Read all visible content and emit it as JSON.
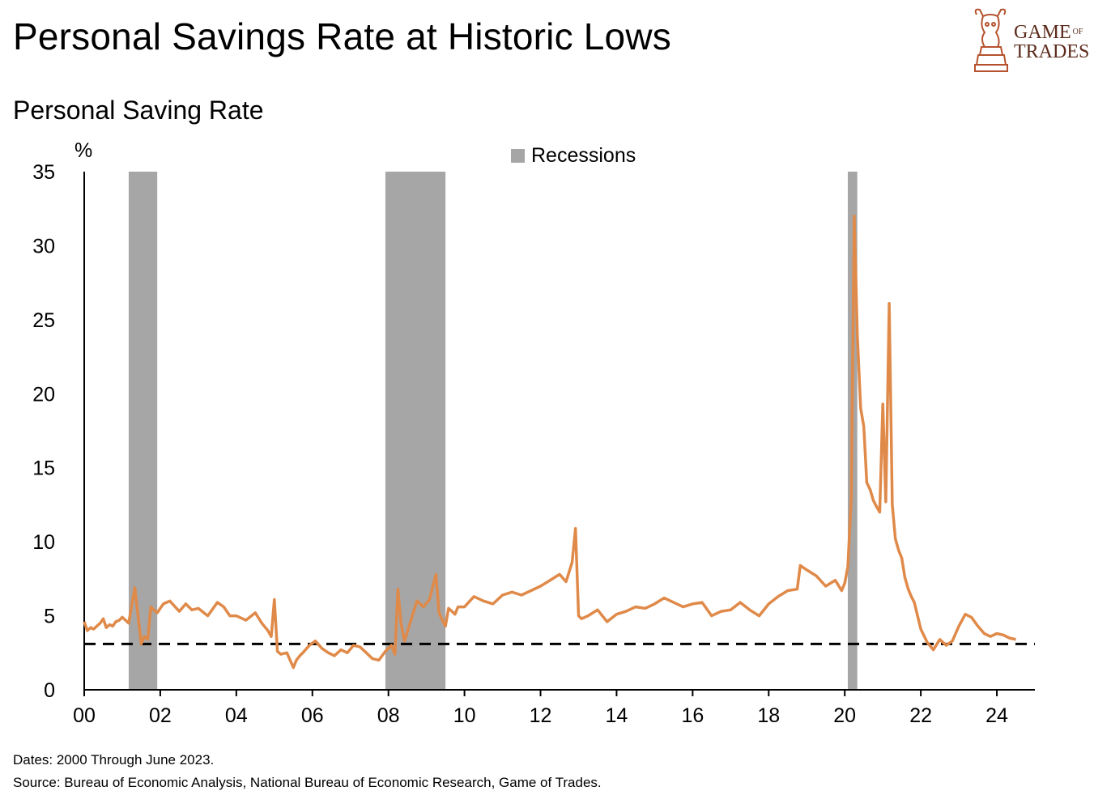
{
  "header": {
    "title": "Personal Savings Rate at Historic Lows",
    "subtitle": "Personal Saving Rate"
  },
  "logo": {
    "line1": "GAME",
    "of": "OF",
    "line2": "TRADES",
    "icon": "bull-knight-chess-icon",
    "color": "#b5532e"
  },
  "footnotes": {
    "dates": "Dates: 2000 Through June 2023.",
    "source": "Source: Bureau of Economic Analysis, National Bureau of Economic Research, Game of Trades."
  },
  "chart_data": {
    "type": "line",
    "title": "Personal Saving Rate",
    "ylabel": "%",
    "xlabel": "",
    "ylim": [
      0,
      35
    ],
    "xlim": [
      2000,
      2025
    ],
    "yticks": [
      "0",
      "5",
      "10",
      "15",
      "20",
      "25",
      "30",
      "35"
    ],
    "xticks": [
      "00",
      "02",
      "04",
      "06",
      "08",
      "10",
      "12",
      "14",
      "16",
      "18",
      "20",
      "22",
      "24"
    ],
    "grid": false,
    "legend": {
      "position": "top-center",
      "entries": [
        "Recessions"
      ]
    },
    "colors": {
      "line": "#e08a4a",
      "recession": "#a6a6a6",
      "reference": "#000000"
    },
    "recessions": [
      {
        "start": 2001.17,
        "end": 2001.92
      },
      {
        "start": 2007.92,
        "end": 2009.5
      },
      {
        "start": 2020.08,
        "end": 2020.33
      }
    ],
    "reference_line": {
      "y": 3.1,
      "style": "dashed"
    },
    "series": [
      {
        "x": [
          2000.0,
          2000.08,
          2000.17,
          2000.25,
          2000.33,
          2000.42,
          2000.5,
          2000.58,
          2000.67,
          2000.75,
          2000.83,
          2000.92,
          2001.0,
          2001.17,
          2001.33,
          2001.5,
          2001.58,
          2001.67,
          2001.75,
          2001.83,
          2001.92,
          2002.0,
          2002.08,
          2002.25,
          2002.5,
          2002.67,
          2002.83,
          2003.0,
          2003.25,
          2003.5,
          2003.67,
          2003.83,
          2004.0,
          2004.25,
          2004.5,
          2004.67,
          2004.83,
          2004.92,
          2005.0,
          2005.08,
          2005.17,
          2005.33,
          2005.5,
          2005.58,
          2005.67,
          2005.75,
          2005.92,
          2006.08,
          2006.25,
          2006.42,
          2006.58,
          2006.75,
          2006.92,
          2007.08,
          2007.25,
          2007.42,
          2007.58,
          2007.75,
          2007.92,
          2008.08,
          2008.17,
          2008.25,
          2008.33,
          2008.42,
          2008.58,
          2008.75,
          2008.92,
          2009.08,
          2009.25,
          2009.33,
          2009.42,
          2009.5,
          2009.58,
          2009.67,
          2009.75,
          2009.83,
          2010.0,
          2010.25,
          2010.5,
          2010.75,
          2011.0,
          2011.25,
          2011.5,
          2011.75,
          2012.0,
          2012.25,
          2012.5,
          2012.67,
          2012.83,
          2012.92,
          2013.0,
          2013.08,
          2013.25,
          2013.5,
          2013.75,
          2014.0,
          2014.25,
          2014.5,
          2014.75,
          2015.0,
          2015.25,
          2015.5,
          2015.75,
          2016.0,
          2016.25,
          2016.5,
          2016.75,
          2017.0,
          2017.25,
          2017.5,
          2017.75,
          2018.0,
          2018.25,
          2018.5,
          2018.75,
          2018.83,
          2019.0,
          2019.25,
          2019.5,
          2019.75,
          2019.92,
          2020.0,
          2020.08,
          2020.17,
          2020.25,
          2020.33,
          2020.42,
          2020.5,
          2020.58,
          2020.67,
          2020.75,
          2020.83,
          2020.92,
          2021.0,
          2021.08,
          2021.17,
          2021.25,
          2021.33,
          2021.42,
          2021.5,
          2021.58,
          2021.67,
          2021.75,
          2021.83,
          2022.0,
          2022.17,
          2022.33,
          2022.5,
          2022.67,
          2022.83,
          2023.0,
          2023.17,
          2023.33,
          2023.5,
          2023.67,
          2023.83,
          2024.0,
          2024.17,
          2024.33,
          2024.5
        ],
        "y": [
          4.6,
          4.0,
          4.2,
          4.1,
          4.3,
          4.5,
          4.8,
          4.2,
          4.4,
          4.3,
          4.6,
          4.7,
          4.9,
          4.5,
          6.9,
          3.1,
          3.6,
          3.4,
          5.6,
          5.4,
          5.2,
          5.5,
          5.8,
          6.0,
          5.3,
          5.8,
          5.4,
          5.5,
          5.0,
          5.9,
          5.6,
          5.0,
          5.0,
          4.7,
          5.2,
          4.5,
          4.0,
          3.6,
          6.1,
          2.6,
          2.4,
          2.5,
          1.5,
          2.0,
          2.3,
          2.5,
          3.0,
          3.3,
          2.8,
          2.5,
          2.3,
          2.7,
          2.5,
          3.0,
          2.9,
          2.5,
          2.1,
          2.0,
          2.6,
          3.0,
          2.4,
          6.8,
          4.5,
          3.3,
          4.6,
          6.0,
          5.6,
          6.1,
          7.8,
          5.2,
          4.7,
          4.3,
          5.5,
          5.3,
          5.1,
          5.6,
          5.6,
          6.3,
          6.0,
          5.8,
          6.4,
          6.6,
          6.4,
          6.7,
          7.0,
          7.4,
          7.8,
          7.3,
          8.6,
          10.9,
          5.0,
          4.8,
          5.0,
          5.4,
          4.6,
          5.1,
          5.3,
          5.6,
          5.5,
          5.8,
          6.2,
          5.9,
          5.6,
          5.8,
          5.9,
          5.0,
          5.3,
          5.4,
          5.9,
          5.4,
          5.0,
          5.8,
          6.3,
          6.7,
          6.8,
          8.4,
          8.1,
          7.7,
          7.0,
          7.4,
          6.7,
          7.2,
          8.3,
          12.9,
          32.0,
          24.0,
          19.0,
          17.8,
          14.0,
          13.5,
          12.8,
          12.4,
          12.0,
          19.3,
          12.7,
          26.1,
          12.5,
          10.2,
          9.4,
          8.9,
          7.6,
          6.8,
          6.3,
          5.9,
          4.1,
          3.2,
          2.7,
          3.4,
          3.0,
          3.3,
          4.3,
          5.1,
          4.9,
          4.3,
          3.8,
          3.6,
          3.8,
          3.7,
          3.5,
          3.4
        ]
      }
    ]
  }
}
